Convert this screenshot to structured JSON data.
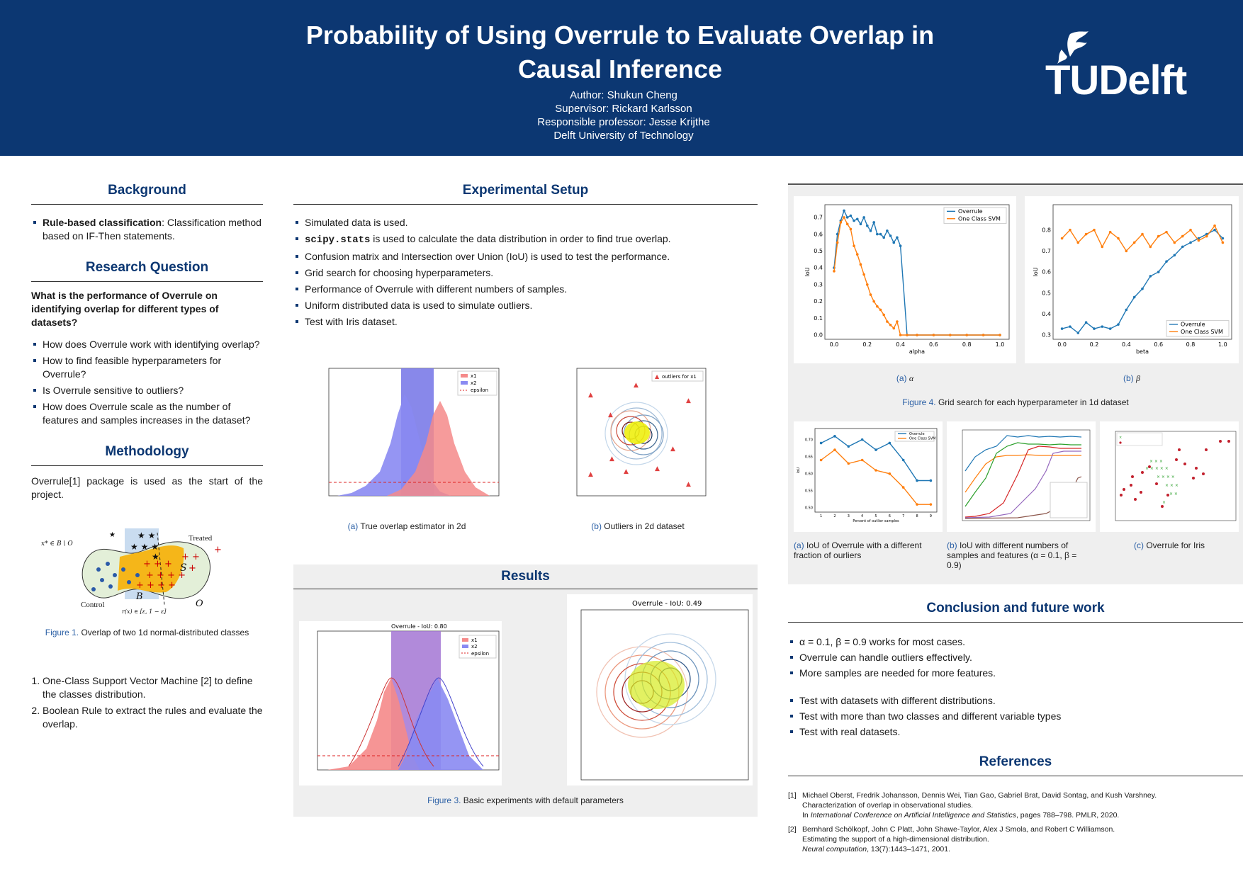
{
  "header": {
    "title_line1": "Probability of Using Overrule to Evaluate Overlap in",
    "title_line2": "Causal Inference",
    "author": "Author: Shukun Cheng",
    "supervisor": "Supervisor: Rickard Karlsson",
    "professor": "Responsible professor: Jesse Krijthe",
    "university": "Delft University of Technology",
    "logo_text": "TUDelft"
  },
  "left": {
    "background_title": "Background",
    "background_bold": "Rule-based classification",
    "background_rest": ": Classification method based on IF-Then statements.",
    "rq_title": "Research Question",
    "rq_main": "What is the performance of Overrule on identifying overlap for different types of datasets?",
    "rq_items": [
      "How does Overrule work with identifying overlap?",
      "How to find feasible hyperparameters for Overrule?",
      "Is Overrule sensitive to outliers?",
      "How does Overrule scale as the number of features and samples increases in the dataset?"
    ],
    "method_title": "Methodology",
    "method_text": "Overrule[1] package is used as the start of the project.",
    "fig1_lab": "Figure 1.",
    "fig1_text": "Overlap of two 1d normal-distributed classes",
    "fig1_treated": "Treated",
    "fig1_control": "Control",
    "method_steps": [
      "One-Class Support Vector Machine [2] to define the classes distribution.",
      "Boolean Rule to extract the rules and evaluate the overlap."
    ]
  },
  "middle": {
    "setup_title": "Experimental Setup",
    "setup_code": "scipy.stats",
    "setup_items": [
      "Simulated data is used.",
      " is used to calculate the data distribution in order to find true overlap.",
      "Confusion matrix and Intersection over Union (IoU) is used to test the performance.",
      "Grid search for choosing hyperparameters.",
      "Performance of Overrule with different numbers of samples.",
      "Uniform distributed data is used to simulate outliers.",
      "Test with Iris dataset."
    ],
    "fig2a_lab": "(a)",
    "fig2a_text": "True overlap estimator in 2d",
    "fig2b_lab": "(b)",
    "fig2b_text": "Outliers in 2d dataset",
    "results_title": "Results",
    "fig3_lab": "Figure 3.",
    "fig3_text": "Basic experiments with default parameters"
  },
  "right": {
    "fig4a_lab": "(a)",
    "fig4a_text": "α",
    "fig4b_lab": "(b)",
    "fig4b_text": "β",
    "fig4_lab": "Figure 4.",
    "fig4_text": "Grid search for each hyperparameter in 1d dataset",
    "fig5a_lab": "(a)",
    "fig5a_text": "IoU of Overrule with a different fraction of ourliers",
    "fig5b_lab": "(b)",
    "fig5b_text": "IoU with different numbers of samples and features (α = 0.1, β = 0.9)",
    "fig5c_lab": "(c)",
    "fig5c_text": "Overrule for Iris",
    "conclusion_title": "Conclusion and future work",
    "conclusions": [
      "α = 0.1, β = 0.9 works for most cases.",
      "Overrule can handle outliers effectively.",
      "More samples are needed for more features."
    ],
    "future": [
      "Test with datasets with different distributions.",
      "Test with more than two classes and different variable types",
      "Test with real datasets."
    ],
    "references_title": "References",
    "ref1_num": "[1]",
    "ref1_l1": "Michael Oberst, Fredrik Johansson, Dennis Wei, Tian Gao, Gabriel Brat, David Sontag, and Kush Varshney.",
    "ref1_l2": "Characterization of overlap in observational studies.",
    "ref1_l3a": "In ",
    "ref1_l3b": "International Conference on Artificial Intelligence and Statistics",
    "ref1_l3c": ", pages 788–798. PMLR, 2020.",
    "ref2_num": "[2]",
    "ref2_l1": "Bernhard Schölkopf, John C Platt, John Shawe-Taylor, Alex J Smola, and Robert C Williamson.",
    "ref2_l2": "Estimating the support of a high-dimensional distribution.",
    "ref2_l3a": "Neural computation",
    "ref2_l3b": ", 13(7):1443–1471, 2001."
  },
  "chart_data": [
    {
      "type": "line",
      "id": "fig4a",
      "xlabel": "alpha",
      "ylabel": "IoU",
      "xlim": [
        0,
        1
      ],
      "ylim": [
        0,
        0.75
      ],
      "xticks": [
        "0.0",
        "0.2",
        "0.4",
        "0.6",
        "0.8",
        "1.0"
      ],
      "yticks": [
        "0.0",
        "0.1",
        "0.2",
        "0.3",
        "0.4",
        "0.5",
        "0.6",
        "0.7"
      ],
      "legend": "top-right",
      "colors": [
        "#1f77b4",
        "#ff7f0e"
      ],
      "series": [
        {
          "name": "Overrule",
          "x": [
            0.0,
            0.02,
            0.04,
            0.06,
            0.08,
            0.1,
            0.12,
            0.14,
            0.16,
            0.18,
            0.2,
            0.22,
            0.24,
            0.26,
            0.28,
            0.3,
            0.32,
            0.34,
            0.36,
            0.38,
            0.4,
            0.44,
            0.5,
            0.6,
            0.7,
            0.8,
            0.9,
            1.0
          ],
          "values": [
            0.4,
            0.6,
            0.68,
            0.74,
            0.7,
            0.71,
            0.68,
            0.69,
            0.66,
            0.7,
            0.65,
            0.62,
            0.67,
            0.6,
            0.6,
            0.58,
            0.62,
            0.59,
            0.55,
            0.58,
            0.53,
            0.0,
            0.0,
            0.0,
            0.0,
            0.0,
            0.0,
            0.0
          ]
        },
        {
          "name": "One Class SVM",
          "x": [
            0.0,
            0.02,
            0.04,
            0.06,
            0.08,
            0.1,
            0.12,
            0.14,
            0.16,
            0.18,
            0.2,
            0.22,
            0.24,
            0.26,
            0.28,
            0.3,
            0.32,
            0.34,
            0.36,
            0.38,
            0.4,
            0.44,
            0.5,
            0.6,
            0.7,
            0.8,
            0.9,
            1.0
          ],
          "values": [
            0.38,
            0.55,
            0.67,
            0.7,
            0.66,
            0.63,
            0.53,
            0.48,
            0.42,
            0.36,
            0.3,
            0.24,
            0.2,
            0.17,
            0.15,
            0.12,
            0.08,
            0.06,
            0.04,
            0.08,
            0.0,
            0.0,
            0.0,
            0.0,
            0.0,
            0.0,
            0.0,
            0.0
          ]
        }
      ]
    },
    {
      "type": "line",
      "id": "fig4b",
      "xlabel": "beta",
      "ylabel": "IoU",
      "xlim": [
        0,
        1
      ],
      "ylim": [
        0.3,
        0.9
      ],
      "xticks": [
        "0.0",
        "0.2",
        "0.4",
        "0.6",
        "0.8",
        "1.0"
      ],
      "yticks": [
        "0.3",
        "0.4",
        "0.5",
        "0.6",
        "0.7",
        "0.8"
      ],
      "legend": "bottom-right",
      "colors": [
        "#1f77b4",
        "#ff7f0e"
      ],
      "series": [
        {
          "name": "Overrule",
          "x": [
            0.0,
            0.05,
            0.1,
            0.15,
            0.2,
            0.25,
            0.3,
            0.35,
            0.4,
            0.45,
            0.5,
            0.55,
            0.6,
            0.65,
            0.7,
            0.75,
            0.8,
            0.85,
            0.9,
            0.95,
            1.0
          ],
          "values": [
            0.33,
            0.34,
            0.31,
            0.36,
            0.33,
            0.34,
            0.33,
            0.35,
            0.42,
            0.48,
            0.52,
            0.58,
            0.6,
            0.65,
            0.68,
            0.72,
            0.74,
            0.76,
            0.78,
            0.8,
            0.76
          ]
        },
        {
          "name": "One Class SVM",
          "x": [
            0.0,
            0.05,
            0.1,
            0.15,
            0.2,
            0.25,
            0.3,
            0.35,
            0.4,
            0.45,
            0.5,
            0.55,
            0.6,
            0.65,
            0.7,
            0.75,
            0.8,
            0.85,
            0.9,
            0.95,
            1.0
          ],
          "values": [
            0.76,
            0.8,
            0.74,
            0.78,
            0.8,
            0.72,
            0.79,
            0.76,
            0.7,
            0.74,
            0.78,
            0.72,
            0.77,
            0.79,
            0.74,
            0.77,
            0.8,
            0.75,
            0.77,
            0.82,
            0.74
          ]
        }
      ]
    },
    {
      "type": "line",
      "id": "fig5a",
      "xlabel": "Percent of outlier samples",
      "ylabel": "IoU",
      "ylim": [
        0.5,
        0.72
      ],
      "xticks": [
        "1",
        "2",
        "3",
        "4",
        "5",
        "6",
        "7",
        "8",
        "9"
      ],
      "yticks": [
        "0.50",
        "0.55",
        "0.60",
        "0.65",
        "0.70"
      ],
      "legend": "top-right",
      "colors": [
        "#1f77b4",
        "#ff7f0e"
      ],
      "series": [
        {
          "name": "Overrule",
          "x": [
            1,
            2,
            3,
            4,
            5,
            6,
            7,
            8,
            9
          ],
          "values": [
            0.69,
            0.71,
            0.68,
            0.7,
            0.67,
            0.69,
            0.64,
            0.58,
            0.58
          ]
        },
        {
          "name": "One Class SVM",
          "x": [
            1,
            2,
            3,
            4,
            5,
            6,
            7,
            8,
            9
          ],
          "values": [
            0.64,
            0.67,
            0.63,
            0.64,
            0.61,
            0.6,
            0.56,
            0.51,
            0.51
          ]
        }
      ]
    }
  ]
}
